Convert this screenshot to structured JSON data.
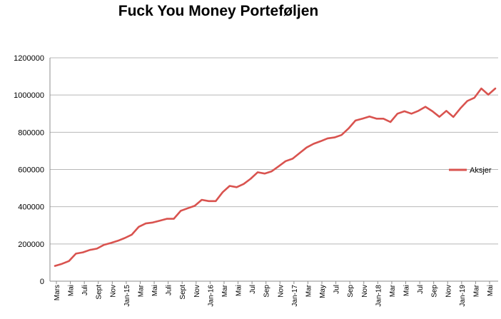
{
  "chart_data": {
    "type": "line",
    "title": "Fuck You Money Porteføljen",
    "xlabel": "",
    "ylabel": "",
    "ylim": [
      0,
      1200000
    ],
    "yticks": [
      0,
      200000,
      400000,
      600000,
      800000,
      1000000,
      1200000
    ],
    "ytick_labels": [
      "0",
      "200000",
      "400000",
      "600000",
      "800000",
      "1000000",
      "1200000"
    ],
    "grid": "horizontal",
    "legend_position": "right",
    "line_color": "#d9534f",
    "x_tick_labels": [
      "Mars",
      "Mai",
      "Juli",
      "Sept",
      "Nov",
      "Jan-15",
      "Mar",
      "Mai",
      "Juli",
      "Sept",
      "Nov",
      "Jan-16",
      "Mar",
      "Mai",
      "Jul",
      "Sep",
      "Nov",
      "Jan-17",
      "Mar",
      "May",
      "Jul",
      "Sep",
      "Nov",
      "Jan-18",
      "Mar",
      "Mai",
      "Jul",
      "Sep",
      "Nov",
      "Jan-19",
      "Mar",
      "Mai"
    ],
    "series": [
      {
        "name": "Aksjer",
        "values": [
          82000,
          93000,
          108000,
          148000,
          155000,
          168000,
          175000,
          195000,
          205000,
          217000,
          232000,
          250000,
          292000,
          310000,
          315000,
          325000,
          335000,
          335000,
          378000,
          392000,
          405000,
          437000,
          430000,
          430000,
          478000,
          512000,
          505000,
          522000,
          550000,
          585000,
          578000,
          590000,
          617000,
          645000,
          658000,
          688000,
          718000,
          738000,
          752000,
          767000,
          772000,
          785000,
          820000,
          863000,
          873000,
          885000,
          873000,
          873000,
          855000,
          900000,
          913000,
          900000,
          915000,
          937000,
          913000,
          883000,
          915000,
          882000,
          928000,
          968000,
          985000,
          1035000,
          1002000,
          1035000
        ]
      }
    ]
  }
}
